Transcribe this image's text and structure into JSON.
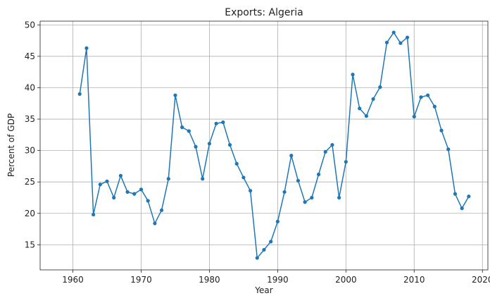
{
  "chart_data": {
    "type": "line",
    "title": "Exports: Algeria",
    "xlabel": "Year",
    "ylabel": "Percent of GDP",
    "xlim": [
      1955.2,
      2020.8
    ],
    "ylim": [
      11.0,
      50.6
    ],
    "xticks": [
      1960,
      1970,
      1980,
      1990,
      2000,
      2010,
      2020
    ],
    "yticks": [
      15,
      20,
      25,
      30,
      35,
      40,
      45,
      50
    ],
    "grid": true,
    "color": "#1f77b4",
    "marker": "circle",
    "series": [
      {
        "x": [
          1961,
          1962,
          1963,
          1964,
          1965,
          1966,
          1967,
          1968,
          1969,
          1970,
          1971,
          1972,
          1973,
          1974,
          1975,
          1976,
          1977,
          1978,
          1979,
          1980,
          1981,
          1982,
          1983,
          1984,
          1985,
          1986,
          1987,
          1988,
          1989,
          1990,
          1991,
          1992,
          1993,
          1994,
          1995,
          1996,
          1997,
          1998,
          1999,
          2000,
          2001,
          2002,
          2003,
          2004,
          2005,
          2006,
          2007,
          2008,
          2009,
          2010,
          2011,
          2012,
          2013,
          2014,
          2015,
          2016,
          2017,
          2018
        ],
        "y": [
          39.0,
          46.3,
          19.8,
          24.6,
          25.1,
          22.5,
          26.0,
          23.4,
          23.1,
          23.8,
          22.0,
          18.4,
          20.5,
          25.5,
          38.8,
          33.7,
          33.1,
          30.6,
          25.5,
          31.1,
          34.3,
          34.5,
          30.9,
          27.9,
          25.7,
          23.6,
          12.9,
          14.2,
          15.5,
          18.7,
          23.4,
          29.2,
          25.2,
          21.8,
          22.5,
          26.2,
          29.8,
          30.9,
          22.5,
          28.2,
          42.1,
          36.7,
          35.5,
          38.2,
          40.1,
          47.2,
          48.8,
          47.1,
          48.0,
          35.4,
          38.5,
          38.8,
          37.0,
          33.2,
          30.2,
          23.1,
          20.8,
          22.7
        ]
      }
    ]
  }
}
